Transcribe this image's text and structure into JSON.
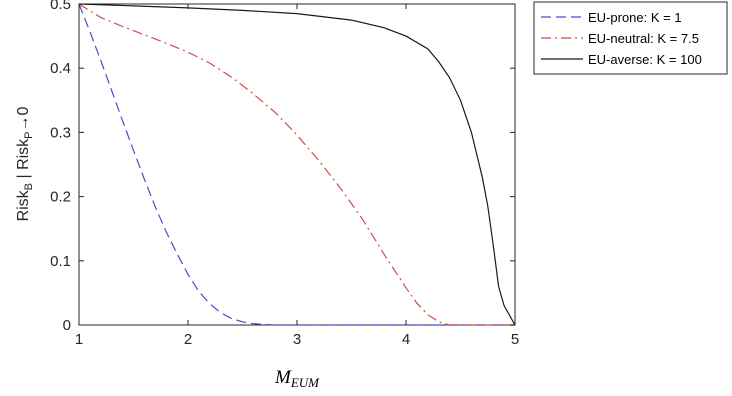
{
  "chart_data": {
    "type": "line",
    "title": "",
    "xlabel": {
      "base": "M",
      "sub": "EUM"
    },
    "ylabel": {
      "parts": [
        {
          "t": "Risk",
          "s": "base"
        },
        {
          "t": "B",
          "s": "sub"
        },
        {
          "t": " | Risk",
          "s": "base"
        },
        {
          "t": "P",
          "s": "sub"
        },
        {
          "t": "→0",
          "s": "base"
        }
      ]
    },
    "xlim": [
      1,
      5
    ],
    "ylim": [
      0,
      0.5
    ],
    "xticks": [
      1,
      2,
      3,
      4,
      5
    ],
    "xtick_labels": [
      "1",
      "2",
      "3",
      "4",
      "5"
    ],
    "yticks": [
      0,
      0.1,
      0.2,
      0.3,
      0.4,
      0.5
    ],
    "ytick_labels": [
      "0",
      "0.1",
      "0.2",
      "0.3",
      "0.4",
      "0.5"
    ],
    "grid": false,
    "legend_position": "top-right-outside",
    "series": [
      {
        "name": "EU-prone: K = 1",
        "color": "#4a4ad2",
        "style": "dashed",
        "x": [
          1.0,
          1.1,
          1.2,
          1.3,
          1.4,
          1.5,
          1.6,
          1.7,
          1.8,
          1.9,
          2.0,
          2.1,
          2.2,
          2.3,
          2.4,
          2.5,
          2.6,
          2.7,
          2.8,
          3.0,
          3.5,
          4.0,
          4.5,
          5.0
        ],
        "y": [
          0.5,
          0.457,
          0.412,
          0.365,
          0.318,
          0.272,
          0.227,
          0.184,
          0.145,
          0.111,
          0.079,
          0.052,
          0.033,
          0.019,
          0.01,
          0.005,
          0.002,
          0.001,
          0.0,
          0.0,
          0.0,
          0.0,
          0.0,
          0.0
        ]
      },
      {
        "name": "EU-neutral: K = 7.5",
        "color": "#d44a4a",
        "style": "dashdot",
        "x": [
          1.0,
          1.2,
          1.4,
          1.6,
          1.8,
          2.0,
          2.2,
          2.4,
          2.6,
          2.8,
          3.0,
          3.2,
          3.4,
          3.6,
          3.8,
          3.9,
          4.0,
          4.1,
          4.2,
          4.3,
          4.4,
          4.6,
          4.8,
          5.0
        ],
        "y": [
          0.5,
          0.479,
          0.465,
          0.452,
          0.439,
          0.425,
          0.408,
          0.386,
          0.36,
          0.331,
          0.296,
          0.256,
          0.213,
          0.165,
          0.11,
          0.084,
          0.058,
          0.034,
          0.016,
          0.005,
          0.0,
          0.0,
          0.0,
          0.0
        ]
      },
      {
        "name": "EU-averse: K = 100",
        "color": "#1a1a1a",
        "style": "solid",
        "x": [
          1.0,
          1.5,
          2.0,
          2.5,
          3.0,
          3.5,
          3.8,
          4.0,
          4.2,
          4.3,
          4.4,
          4.5,
          4.6,
          4.7,
          4.75,
          4.8,
          4.85,
          4.9,
          4.95,
          5.0
        ],
        "y": [
          0.5,
          0.497,
          0.494,
          0.49,
          0.485,
          0.475,
          0.463,
          0.45,
          0.43,
          0.41,
          0.385,
          0.35,
          0.3,
          0.23,
          0.185,
          0.125,
          0.06,
          0.03,
          0.015,
          0.0
        ]
      }
    ]
  }
}
